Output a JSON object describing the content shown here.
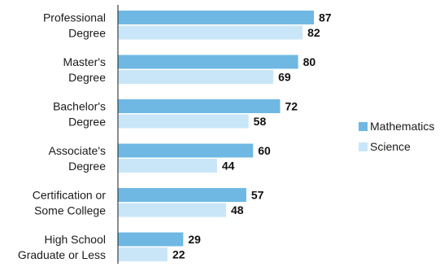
{
  "chart_data": {
    "type": "bar",
    "orientation": "horizontal",
    "categories": [
      [
        "Professional",
        "Degree"
      ],
      [
        "Master's",
        "Degree"
      ],
      [
        "Bachelor's",
        "Degree"
      ],
      [
        "Associate's",
        "Degree"
      ],
      [
        "Certification or",
        "Some College"
      ],
      [
        "High School",
        "Graduate or Less"
      ]
    ],
    "series": [
      {
        "name": "Mathematics",
        "values": [
          87,
          80,
          72,
          60,
          57,
          29
        ],
        "color": "#6fb8e3"
      },
      {
        "name": "Science",
        "values": [
          82,
          69,
          58,
          44,
          48,
          22
        ],
        "color": "#c9e6f8"
      }
    ],
    "xlim": [
      0,
      100
    ],
    "grid": false,
    "legend_position": "right"
  }
}
